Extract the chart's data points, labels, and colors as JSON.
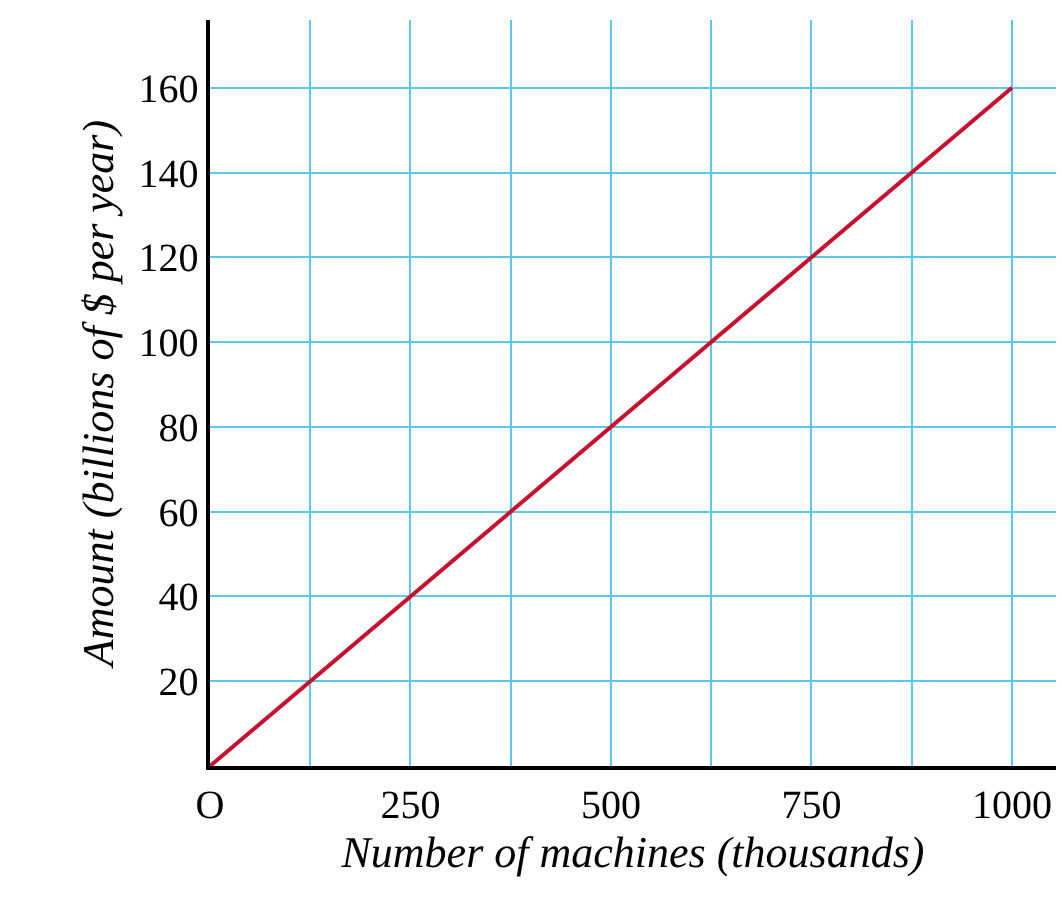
{
  "chart_data": {
    "type": "line",
    "xlabel": "Number of machines (thousands)",
    "ylabel": "Amount (billions of $ per year)",
    "x": [
      0,
      1000
    ],
    "series": [
      {
        "color": "#c8102e",
        "values": [
          0,
          160
        ]
      }
    ],
    "xlim": [
      0,
      1055
    ],
    "ylim": [
      0,
      176
    ],
    "xticks": [
      {
        "value": 0,
        "label": "O"
      },
      {
        "value": 125,
        "label": null
      },
      250,
      {
        "value": 375,
        "label": null
      },
      500,
      {
        "value": 625,
        "label": null
      },
      750,
      {
        "value": 875,
        "label": null
      },
      1000
    ],
    "yticks": [
      20,
      40,
      60,
      80,
      100,
      120,
      140,
      160
    ],
    "grid": true,
    "legend": false,
    "marker": "none",
    "line_style": "solid"
  }
}
